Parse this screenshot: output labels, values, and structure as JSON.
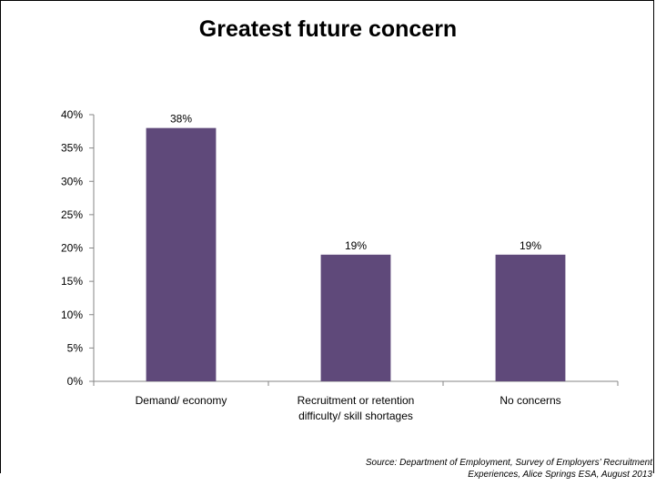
{
  "chart_data": {
    "type": "bar",
    "title": "Greatest future concern",
    "categories": [
      [
        "Demand/ economy"
      ],
      [
        "Recruitment or retention",
        "difficulty/ skill shortages"
      ],
      [
        "No concerns"
      ]
    ],
    "values": [
      38,
      19,
      19
    ],
    "data_labels": [
      "38%",
      "19%",
      "19%"
    ],
    "y_ticks": [
      "0%",
      "5%",
      "10%",
      "15%",
      "20%",
      "25%",
      "30%",
      "35%",
      "40%"
    ],
    "ylim": [
      0,
      40
    ],
    "grid": false,
    "bar_color": "#5f497a",
    "xlabel": "",
    "ylabel": ""
  },
  "source": {
    "line1": "Source: Department of Employment, Survey of Employers’ Recruitment",
    "line2": "Experiences, Alice Springs ESA, August 2013"
  }
}
